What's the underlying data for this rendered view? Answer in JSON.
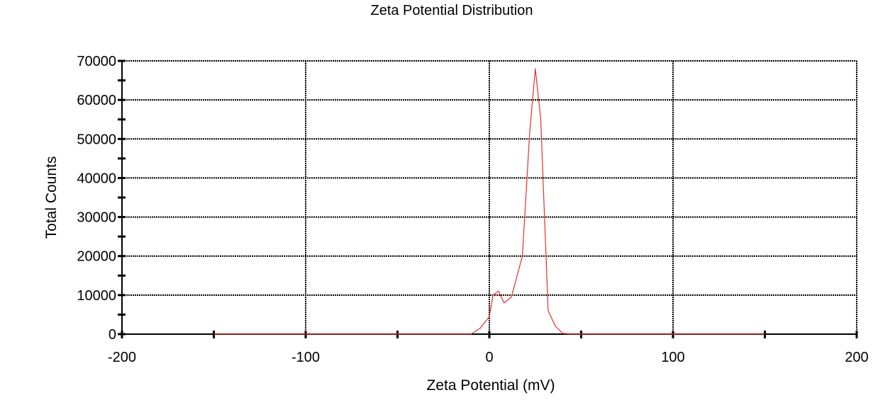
{
  "chart_data": {
    "type": "line",
    "title": "Zeta Potential Distribution",
    "xlabel": "Zeta Potential (mV)",
    "ylabel": "Total Counts",
    "xlim": [
      -200,
      200
    ],
    "ylim": [
      0,
      70000
    ],
    "x_ticks": [
      -200,
      -100,
      0,
      100,
      200
    ],
    "x_tick_labels": [
      "-200",
      "-100",
      "0",
      "100",
      "200"
    ],
    "y_ticks": [
      0,
      10000,
      20000,
      30000,
      40000,
      50000,
      60000,
      70000
    ],
    "y_tick_labels": [
      "0",
      "10000",
      "20000",
      "30000",
      "40000",
      "50000",
      "60000",
      "70000"
    ],
    "grid": true,
    "series": [
      {
        "color": "#e03030",
        "x": [
          -150,
          -10,
          -5,
          0,
          2,
          5,
          8,
          12,
          18,
          22,
          25,
          28,
          32,
          36,
          40,
          45,
          150
        ],
        "y": [
          0,
          0,
          1500,
          4500,
          10000,
          11000,
          8000,
          9500,
          20000,
          52000,
          68000,
          55000,
          6000,
          2000,
          200,
          0,
          0
        ]
      }
    ]
  }
}
